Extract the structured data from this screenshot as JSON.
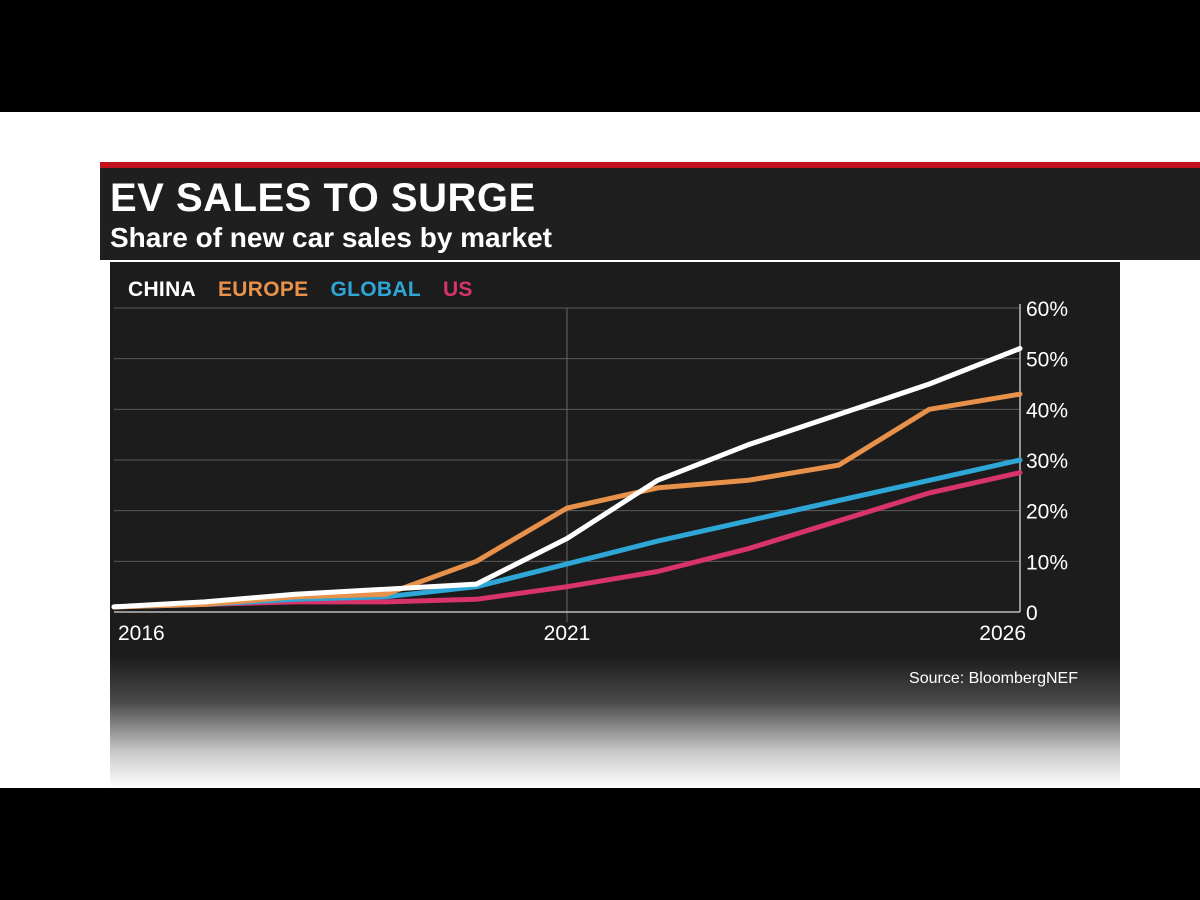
{
  "header": {
    "title": "EV SALES TO SURGE",
    "subtitle": "Share of new car sales by market"
  },
  "source": "Source: BloombergNEF",
  "colors": {
    "CHINA": "#ffffff",
    "EUROPE": "#e8914a",
    "GLOBAL": "#2ea6d6",
    "US": "#d8336a"
  },
  "chart_data": {
    "type": "line",
    "title": "EV SALES TO SURGE",
    "subtitle": "Share of new car sales by market",
    "x": [
      2016,
      2017,
      2018,
      2019,
      2020,
      2021,
      2022,
      2023,
      2024,
      2025,
      2026
    ],
    "x_tick_labels": [
      "2016",
      "2021",
      "2026"
    ],
    "x_tick_values": [
      2016,
      2021,
      2026
    ],
    "y_tick_labels": [
      "0",
      "10%",
      "20%",
      "30%",
      "40%",
      "50%",
      "60%"
    ],
    "y_tick_values": [
      0,
      10,
      20,
      30,
      40,
      50,
      60
    ],
    "ylim": [
      0,
      60
    ],
    "xlim": [
      2016,
      2026
    ],
    "legend_position": "top-left",
    "grid": true,
    "series": [
      {
        "name": "CHINA",
        "values": [
          1,
          2,
          3.5,
          4.5,
          5.5,
          14.5,
          26,
          33,
          39,
          45,
          52
        ]
      },
      {
        "name": "EUROPE",
        "values": [
          1,
          1.5,
          3,
          3.5,
          10,
          20.5,
          24.5,
          26,
          29,
          40,
          43
        ]
      },
      {
        "name": "GLOBAL",
        "values": [
          1,
          1.5,
          2.5,
          3,
          5,
          9.5,
          14,
          18,
          22,
          26,
          30
        ]
      },
      {
        "name": "US",
        "values": [
          1,
          1.5,
          2,
          2,
          2.5,
          5,
          8,
          12.5,
          18,
          23.5,
          27.5
        ]
      }
    ],
    "source": "Source: BloombergNEF"
  }
}
